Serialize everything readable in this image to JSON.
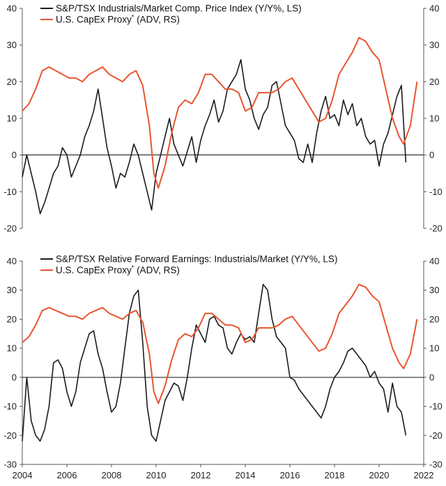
{
  "chart_data": [
    {
      "type": "line",
      "panel": "top",
      "x_label_years": [],
      "ylim_left": [
        -20,
        40
      ],
      "ylim_right": [
        -20,
        40
      ],
      "yticks": [
        -20,
        -10,
        0,
        10,
        20,
        30,
        40
      ],
      "legend": [
        {
          "name": "S&P/TSX Industrials/Market Comp. Price Index (Y/Y%, LS)",
          "color": "#1b1b1b"
        },
        {
          "name": "U.S. CapEx Proxy",
          "sup": "*",
          "suffix": " (ADV, RS)",
          "color": "#e8552f"
        }
      ],
      "series": [
        {
          "name": "S&P/TSX Industrials/Market Comp. Price Index (Y/Y%, LS)",
          "color": "#1b1b1b",
          "axis": "left",
          "x": [
            2004.0,
            2004.2,
            2004.4,
            2004.6,
            2004.8,
            2005.0,
            2005.2,
            2005.4,
            2005.6,
            2005.8,
            2006.0,
            2006.2,
            2006.4,
            2006.6,
            2006.8,
            2007.0,
            2007.2,
            2007.4,
            2007.6,
            2007.8,
            2008.0,
            2008.2,
            2008.4,
            2008.6,
            2008.8,
            2009.0,
            2009.2,
            2009.4,
            2009.6,
            2009.8,
            2010.0,
            2010.2,
            2010.4,
            2010.6,
            2010.8,
            2011.0,
            2011.2,
            2011.4,
            2011.6,
            2011.8,
            2012.0,
            2012.2,
            2012.4,
            2012.6,
            2012.8,
            2013.0,
            2013.2,
            2013.4,
            2013.6,
            2013.8,
            2014.0,
            2014.2,
            2014.4,
            2014.6,
            2014.8,
            2015.0,
            2015.2,
            2015.4,
            2015.6,
            2015.8,
            2016.0,
            2016.2,
            2016.4,
            2016.6,
            2016.8,
            2017.0,
            2017.2,
            2017.4,
            2017.6,
            2017.8,
            2018.0,
            2018.2,
            2018.4,
            2018.6,
            2018.8,
            2019.0,
            2019.2,
            2019.4,
            2019.6,
            2019.8,
            2020.0,
            2020.2,
            2020.4,
            2020.6,
            2020.8,
            2021.0,
            2021.2
          ],
          "y": [
            -6,
            0,
            -5,
            -10,
            -16,
            -13,
            -9,
            -5,
            -3,
            2,
            0,
            -6,
            -3,
            0,
            5,
            8,
            12,
            18,
            10,
            2,
            -3,
            -9,
            -5,
            -6,
            -2,
            3,
            0,
            -5,
            -10,
            -15,
            -5,
            0,
            5,
            10,
            3,
            0,
            -3,
            1,
            5,
            -2,
            4,
            8,
            11,
            15,
            9,
            12,
            18,
            20,
            22,
            26,
            18,
            15,
            10,
            7,
            11,
            13,
            19,
            20,
            14,
            8,
            6,
            4,
            -1,
            -2,
            3,
            -2,
            6,
            12,
            16,
            10,
            11,
            8,
            15,
            11,
            14,
            8,
            10,
            5,
            3,
            4,
            -3,
            3,
            6,
            11,
            16,
            19,
            -2
          ]
        },
        {
          "name": "U.S. CapEx Proxy",
          "color": "#e8552f",
          "axis": "right",
          "x": [
            2004.0,
            2004.3,
            2004.6,
            2004.9,
            2005.2,
            2005.5,
            2005.8,
            2006.1,
            2006.4,
            2006.7,
            2007.0,
            2007.3,
            2007.6,
            2007.9,
            2008.2,
            2008.5,
            2008.8,
            2009.1,
            2009.4,
            2009.7,
            2009.9,
            2010.1,
            2010.4,
            2010.7,
            2011.0,
            2011.3,
            2011.6,
            2011.9,
            2012.2,
            2012.5,
            2012.8,
            2013.1,
            2013.4,
            2013.7,
            2014.0,
            2014.3,
            2014.6,
            2014.9,
            2015.2,
            2015.5,
            2015.8,
            2016.1,
            2016.4,
            2016.7,
            2017.0,
            2017.3,
            2017.6,
            2017.9,
            2018.2,
            2018.5,
            2018.8,
            2019.1,
            2019.4,
            2019.7,
            2020.0,
            2020.3,
            2020.6,
            2020.9,
            2021.1,
            2021.4,
            2021.7
          ],
          "y": [
            12,
            14,
            18,
            23,
            24,
            23,
            22,
            21,
            21,
            20,
            22,
            23,
            24,
            22,
            21,
            20,
            22,
            23,
            19,
            8,
            -5,
            -9,
            -3,
            6,
            13,
            15,
            14,
            17,
            22,
            22,
            20,
            18,
            18,
            17,
            12,
            13,
            17,
            17,
            17,
            18,
            20,
            21,
            18,
            15,
            12,
            9,
            10,
            15,
            22,
            25,
            28,
            32,
            31,
            28,
            26,
            18,
            10,
            5,
            3,
            8,
            20
          ]
        }
      ]
    },
    {
      "type": "line",
      "panel": "bottom",
      "xticks": [
        "2004",
        "2006",
        "2008",
        "2010",
        "2012",
        "2014",
        "2016",
        "2018",
        "2020",
        "2022"
      ],
      "ylim_left": [
        -30,
        40
      ],
      "ylim_right": [
        -30,
        40
      ],
      "yticks": [
        -30,
        -20,
        -10,
        0,
        10,
        20,
        30,
        40
      ],
      "legend": [
        {
          "name": "S&P/TSX Relative Forward Earnings: Industrials/Market (Y/Y%, LS)",
          "color": "#1b1b1b"
        },
        {
          "name": "U.S. CapEx Proxy",
          "sup": "*",
          "suffix": " (ADV, RS)",
          "color": "#e8552f"
        }
      ],
      "series": [
        {
          "name": "S&P/TSX Relative Forward Earnings: Industrials/Market (Y/Y%, LS)",
          "color": "#1b1b1b",
          "axis": "left",
          "x": [
            2004.0,
            2004.2,
            2004.4,
            2004.6,
            2004.8,
            2005.0,
            2005.2,
            2005.4,
            2005.6,
            2005.8,
            2006.0,
            2006.2,
            2006.4,
            2006.6,
            2006.8,
            2007.0,
            2007.2,
            2007.4,
            2007.6,
            2007.8,
            2008.0,
            2008.2,
            2008.4,
            2008.6,
            2008.8,
            2009.0,
            2009.2,
            2009.4,
            2009.6,
            2009.8,
            2010.0,
            2010.2,
            2010.4,
            2010.6,
            2010.8,
            2011.0,
            2011.2,
            2011.4,
            2011.6,
            2011.8,
            2012.0,
            2012.2,
            2012.4,
            2012.6,
            2012.8,
            2013.0,
            2013.2,
            2013.4,
            2013.6,
            2013.8,
            2014.0,
            2014.2,
            2014.4,
            2014.6,
            2014.8,
            2015.0,
            2015.2,
            2015.4,
            2015.6,
            2015.8,
            2016.0,
            2016.2,
            2016.4,
            2016.6,
            2016.8,
            2017.0,
            2017.2,
            2017.4,
            2017.6,
            2017.8,
            2018.0,
            2018.2,
            2018.4,
            2018.6,
            2018.8,
            2019.0,
            2019.2,
            2019.4,
            2019.6,
            2019.8,
            2020.0,
            2020.2,
            2020.4,
            2020.6,
            2020.8,
            2021.0,
            2021.2
          ],
          "y": [
            -22,
            0,
            -15,
            -20,
            -22,
            -18,
            -10,
            5,
            6,
            3,
            -5,
            -10,
            -5,
            5,
            10,
            15,
            16,
            8,
            3,
            -5,
            -12,
            -10,
            -2,
            10,
            22,
            28,
            30,
            12,
            -10,
            -20,
            -22,
            -15,
            -8,
            -5,
            -2,
            -3,
            -8,
            0,
            10,
            18,
            15,
            12,
            20,
            21,
            18,
            17,
            10,
            8,
            12,
            15,
            13,
            14,
            12,
            22,
            32,
            30,
            20,
            14,
            12,
            10,
            0,
            -1,
            -4,
            -6,
            -8,
            -10,
            -12,
            -14,
            -10,
            -4,
            0,
            2,
            5,
            9,
            10,
            8,
            6,
            4,
            0,
            2,
            -2,
            -4,
            -12,
            -2,
            -10,
            -12,
            -20
          ]
        },
        {
          "name": "U.S. CapEx Proxy",
          "color": "#e8552f",
          "axis": "right",
          "x": [
            2004.0,
            2004.3,
            2004.6,
            2004.9,
            2005.2,
            2005.5,
            2005.8,
            2006.1,
            2006.4,
            2006.7,
            2007.0,
            2007.3,
            2007.6,
            2007.9,
            2008.2,
            2008.5,
            2008.8,
            2009.1,
            2009.4,
            2009.7,
            2009.9,
            2010.1,
            2010.4,
            2010.7,
            2011.0,
            2011.3,
            2011.6,
            2011.9,
            2012.2,
            2012.5,
            2012.8,
            2013.1,
            2013.4,
            2013.7,
            2014.0,
            2014.3,
            2014.6,
            2014.9,
            2015.2,
            2015.5,
            2015.8,
            2016.1,
            2016.4,
            2016.7,
            2017.0,
            2017.3,
            2017.6,
            2017.9,
            2018.2,
            2018.5,
            2018.8,
            2019.1,
            2019.4,
            2019.7,
            2020.0,
            2020.3,
            2020.6,
            2020.9,
            2021.1,
            2021.4,
            2021.7
          ],
          "y": [
            12,
            14,
            18,
            23,
            24,
            23,
            22,
            21,
            21,
            20,
            22,
            23,
            24,
            22,
            21,
            20,
            22,
            23,
            19,
            8,
            -5,
            -9,
            -3,
            6,
            13,
            15,
            14,
            17,
            22,
            22,
            20,
            18,
            18,
            17,
            12,
            13,
            17,
            17,
            17,
            18,
            20,
            21,
            18,
            15,
            12,
            9,
            10,
            15,
            22,
            25,
            28,
            32,
            31,
            28,
            26,
            18,
            10,
            5,
            3,
            8,
            20
          ]
        }
      ]
    }
  ]
}
